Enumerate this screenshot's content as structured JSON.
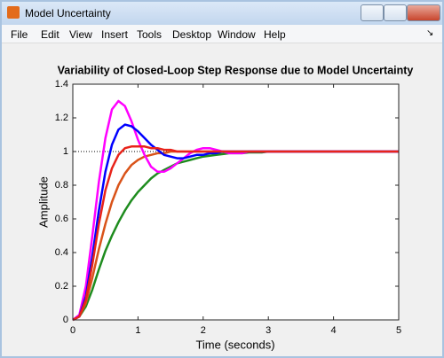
{
  "window": {
    "title": "Model Uncertainty",
    "menu": [
      "File",
      "Edit",
      "View",
      "Insert",
      "Tools",
      "Desktop",
      "Window",
      "Help"
    ]
  },
  "chart_data": {
    "type": "line",
    "title": "Variability of Closed-Loop Step Response due to Model Uncertainty",
    "x_label": "Time (seconds)",
    "y_label": "Amplitude",
    "x": [
      0,
      0.1,
      0.2,
      0.3,
      0.4,
      0.5,
      0.6,
      0.7,
      0.8,
      0.9,
      1.0,
      1.1,
      1.2,
      1.3,
      1.4,
      1.5,
      1.6,
      1.7,
      1.8,
      1.9,
      2.0,
      2.1,
      2.2,
      2.3,
      2.4,
      2.5,
      2.6,
      2.7,
      2.8,
      2.9,
      3.0,
      3.5,
      4.0,
      4.5,
      5.0
    ],
    "series": [
      {
        "color": "#1e8c1e",
        "values": [
          0,
          0.02,
          0.08,
          0.18,
          0.3,
          0.41,
          0.5,
          0.58,
          0.65,
          0.71,
          0.76,
          0.8,
          0.84,
          0.87,
          0.89,
          0.91,
          0.93,
          0.94,
          0.95,
          0.96,
          0.97,
          0.975,
          0.98,
          0.985,
          0.99,
          0.99,
          0.99,
          0.995,
          0.995,
          0.995,
          1,
          1,
          1,
          1,
          1
        ]
      },
      {
        "color": "#d95319",
        "values": [
          0,
          0.02,
          0.1,
          0.25,
          0.42,
          0.57,
          0.7,
          0.8,
          0.87,
          0.92,
          0.95,
          0.97,
          0.98,
          0.99,
          0.99,
          1,
          1,
          1,
          1,
          1,
          1,
          1,
          1,
          1,
          1,
          1,
          1,
          1,
          1,
          1,
          1,
          1,
          1,
          1,
          1
        ]
      },
      {
        "color": "#ff00ff",
        "values": [
          0,
          0.03,
          0.2,
          0.5,
          0.82,
          1.08,
          1.25,
          1.3,
          1.27,
          1.18,
          1.07,
          0.98,
          0.91,
          0.88,
          0.88,
          0.9,
          0.93,
          0.96,
          0.99,
          1.01,
          1.02,
          1.02,
          1.01,
          1,
          0.99,
          0.99,
          0.99,
          1,
          1,
          1,
          1,
          1,
          1,
          1,
          1
        ]
      },
      {
        "color": "#0000ff",
        "values": [
          0,
          0.02,
          0.14,
          0.38,
          0.65,
          0.88,
          1.04,
          1.13,
          1.16,
          1.15,
          1.12,
          1.08,
          1.04,
          1.01,
          0.98,
          0.97,
          0.96,
          0.96,
          0.97,
          0.98,
          0.98,
          0.99,
          0.99,
          1,
          1,
          1,
          1,
          1,
          1,
          1,
          1,
          1,
          1,
          1,
          1
        ]
      },
      {
        "color": "#e8231a",
        "values": [
          0,
          0.02,
          0.12,
          0.33,
          0.57,
          0.77,
          0.9,
          0.98,
          1.02,
          1.03,
          1.03,
          1.03,
          1.02,
          1.02,
          1.01,
          1.01,
          1,
          1,
          1,
          1,
          1,
          1,
          1,
          1,
          1,
          1,
          1,
          1,
          1,
          1,
          1,
          1,
          1,
          1,
          1
        ]
      }
    ],
    "steady_state": 1,
    "xlim": [
      0,
      5
    ],
    "xticks": [
      0,
      1,
      2,
      3,
      4,
      5
    ],
    "ylim": [
      0,
      1.4
    ],
    "yticks": [
      0,
      0.2,
      0.4,
      0.6,
      0.8,
      1,
      1.2,
      1.4
    ]
  }
}
